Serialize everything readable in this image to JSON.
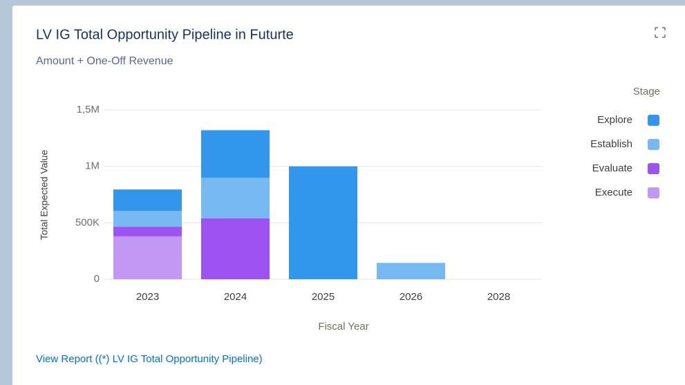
{
  "chart_data": {
    "type": "stacked_bar",
    "title": "LV IG Total Opportunity Pipeline in Futurte",
    "subtitle": "Amount + One-Off Revenue",
    "x_label": "Fiscal Year",
    "y_label": "Total Expected Value",
    "legend_title": "Stage",
    "legend_position": "right",
    "grid": true,
    "categories": [
      "2023",
      "2024",
      "2025",
      "2026",
      "2028"
    ],
    "series": [
      {
        "name": "Explore",
        "color": "#3296ed",
        "values": [
          190000,
          420000,
          1000000,
          0,
          0
        ]
      },
      {
        "name": "Establish",
        "color": "#77b9f2",
        "values": [
          140000,
          360000,
          0,
          145000,
          0
        ]
      },
      {
        "name": "Evaluate",
        "color": "#9d53f2",
        "values": [
          85000,
          540000,
          0,
          0,
          0
        ]
      },
      {
        "name": "Execute",
        "color": "#c398f5",
        "values": [
          380000,
          0,
          0,
          0,
          0
        ]
      }
    ],
    "ylim": [
      0,
      1500000
    ],
    "yticks": [
      0,
      {
        "value": 500000,
        "label": "500K"
      },
      {
        "value": 1000000,
        "label": "1M"
      },
      {
        "value": 1500000,
        "label": "1,5M"
      }
    ]
  },
  "link": "View Report ((*) LV IG Total Opportunity Pipeline)"
}
